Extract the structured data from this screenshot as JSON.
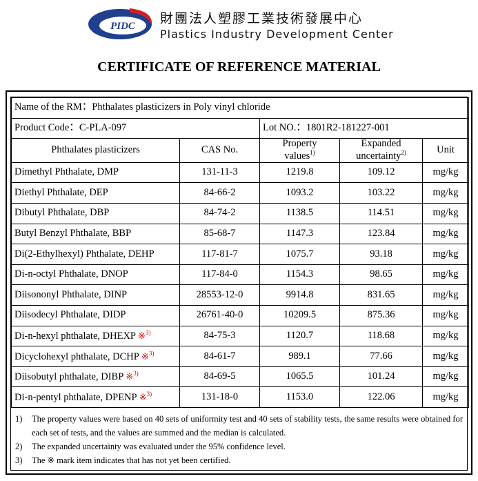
{
  "header": {
    "logo_text": "PIDC",
    "org_chinese": "財團法人塑膠工業技術發展中心",
    "org_english": "Plastics Industry Development Center",
    "certificate_title": "CERTIFICATE OF REFERENCE MATERIAL"
  },
  "info": {
    "rm_name": "Name of the RM：Phthalates plasticizers in Poly vinyl chloride",
    "product_code": "Product Code：C-PLA-097",
    "lot_no": "Lot NO.：1801R2-181227-001"
  },
  "columns": {
    "compound": "Phthalates plasticizers",
    "cas": "CAS No.",
    "property_line1": "Property",
    "property_line2": "values",
    "property_ref": "1)",
    "uncertainty_line1": "Expanded",
    "uncertainty_line2": "uncertainty",
    "uncertainty_ref": "2)",
    "unit": "Unit"
  },
  "rows": [
    {
      "name": "Dimethyl Phthalate, DMP",
      "mark": "",
      "cas": "131-11-3",
      "value": "1219.8",
      "uncertainty": "109.12",
      "unit": "mg/kg"
    },
    {
      "name": "Diethyl Phthalate, DEP",
      "mark": "",
      "cas": "84-66-2",
      "value": "1093.2",
      "uncertainty": "103.22",
      "unit": "mg/kg"
    },
    {
      "name": "Dibutyl Phthalate, DBP",
      "mark": "",
      "cas": "84-74-2",
      "value": "1138.5",
      "uncertainty": "114.51",
      "unit": "mg/kg"
    },
    {
      "name": "Butyl Benzyl Phthalate, BBP",
      "mark": "",
      "cas": "85-68-7",
      "value": "1147.3",
      "uncertainty": "123.84",
      "unit": "mg/kg"
    },
    {
      "name": "Di(2-Ethylhexyl) Phthalate, DEHP",
      "mark": "",
      "cas": "117-81-7",
      "value": "1075.7",
      "uncertainty": "93.18",
      "unit": "mg/kg"
    },
    {
      "name": "Di-n-octyl Phthalate, DNOP",
      "mark": "",
      "cas": "117-84-0",
      "value": "1154.3",
      "uncertainty": "98.65",
      "unit": "mg/kg"
    },
    {
      "name": "Diisononyl Phthalate, DINP",
      "mark": "",
      "cas": "28553-12-0",
      "value": "9914.8",
      "uncertainty": "831.65",
      "unit": "mg/kg"
    },
    {
      "name": "Diisodecyl Phthalate, DIDP",
      "mark": "",
      "cas": "26761-40-0",
      "value": "10209.5",
      "uncertainty": "875.36",
      "unit": "mg/kg"
    },
    {
      "name": "Di-n-hexyl phthalate, DHEXP",
      "mark": "※",
      "mark_ref": "3)",
      "cas": "84-75-3",
      "value": "1120.7",
      "uncertainty": "118.68",
      "unit": "mg/kg"
    },
    {
      "name": "Dicyclohexyl phthalate, DCHP",
      "mark": "※",
      "mark_ref": "3)",
      "cas": "84-61-7",
      "value": "989.1",
      "uncertainty": "77.66",
      "unit": "mg/kg"
    },
    {
      "name": "Diisobutyl phthalate, DIBP",
      "mark": "※",
      "mark_ref": "3)",
      "cas": "84-69-5",
      "value": "1065.5",
      "uncertainty": "101.24",
      "unit": "mg/kg"
    },
    {
      "name": "Di-n-pentyl phthalate, DPENP",
      "mark": "※",
      "mark_ref": "3)",
      "cas": "131-18-0",
      "value": "1153.0",
      "uncertainty": "122.06",
      "unit": "mg/kg"
    }
  ],
  "notes": [
    {
      "num": "1)",
      "text": "The property values were based on 40 sets of uniformity test and 40 sets of stability tests, the same results were obtained for each set of tests, and the values are summed and the median is calculated."
    },
    {
      "num": "2)",
      "text": "The expanded uncertainty was evaluated under the 95% confidence level."
    },
    {
      "num": "3)",
      "text": "The ※ mark item indicates that has not yet been certified."
    }
  ],
  "colors": {
    "logo_blue": "#1f3f8f",
    "logo_red": "#d21f26",
    "mark_red": "#d00000"
  }
}
